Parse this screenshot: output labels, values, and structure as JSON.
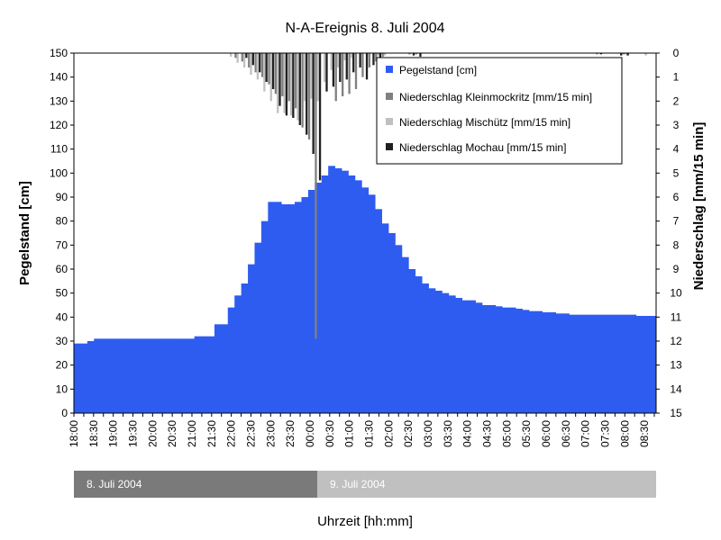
{
  "chart_data": {
    "type": "bar",
    "title": "N-A-Ereignis 8. Juli 2004",
    "xlabel": "Uhrzeit [hh:mm]",
    "ylabel": "Pegelstand [cm]",
    "y2label": "Niederschlag [mm/15 min]",
    "ylim": [
      0,
      150
    ],
    "y2lim": [
      0,
      15
    ],
    "y2_inverted": true,
    "yticks": [
      0,
      10,
      20,
      30,
      40,
      50,
      60,
      70,
      80,
      90,
      100,
      110,
      120,
      130,
      140,
      150
    ],
    "y2ticks": [
      0,
      1,
      2,
      3,
      4,
      5,
      6,
      7,
      8,
      9,
      10,
      11,
      12,
      13,
      14,
      15
    ],
    "time_labels": [
      "18:00",
      "18:30",
      "19:00",
      "19:30",
      "20:00",
      "20:30",
      "21:00",
      "21:30",
      "22:00",
      "22:30",
      "23:00",
      "23:30",
      "00:00",
      "00:30",
      "01:00",
      "01:30",
      "02:00",
      "02:30",
      "03:00",
      "03:30",
      "04:00",
      "04:30",
      "05:00",
      "05:30",
      "06:00",
      "06:30",
      "07:00",
      "07:30",
      "08:00",
      "08:30"
    ],
    "legend": {
      "position": "top-right",
      "entries": [
        "Pegelstand [cm]",
        "Niederschlag Kleinmockritz [mm/15 min]",
        "Niederschlag Mischütz [mm/15 min]",
        "Niederschlag Mochau [mm/15 min]"
      ]
    },
    "date_bands": [
      {
        "label": "8. Juli 2004",
        "color": "#7a7a7a"
      },
      {
        "label": "9. Juli 2004",
        "color": "#c0c0c0"
      }
    ],
    "series": [
      {
        "name": "Pegelstand [cm]",
        "color": "#2f5cf0",
        "values": [
          29,
          29,
          30,
          31,
          31,
          31,
          31,
          31,
          31,
          31,
          31,
          31,
          31,
          31,
          31,
          31,
          31,
          31,
          32,
          32,
          32,
          37,
          37,
          44,
          49,
          54,
          62,
          71,
          80,
          88,
          88,
          87,
          87,
          88,
          90,
          93,
          96,
          99,
          103,
          102,
          101,
          99,
          97,
          94,
          91,
          85,
          79,
          75,
          70,
          65,
          60,
          57,
          54,
          52,
          51,
          50,
          49,
          48,
          47,
          47,
          46,
          45,
          45,
          44.5,
          44,
          44,
          43.5,
          43,
          42.5,
          42.5,
          42,
          42,
          41.5,
          41.5,
          41,
          41,
          41,
          41,
          41,
          41,
          41,
          41,
          41,
          41,
          40.5,
          40.5,
          40.5
        ]
      },
      {
        "name": "Niederschlag Kleinmockritz [mm/15 min]",
        "color": "#808080",
        "values": [
          0,
          0,
          0,
          0,
          0,
          0,
          0,
          0,
          0,
          0,
          0,
          0,
          0,
          0,
          0,
          0,
          0,
          0,
          0,
          0,
          0,
          0,
          0,
          0,
          0.2,
          0.35,
          0.6,
          0.8,
          1.0,
          1.3,
          1.7,
          1.8,
          2.0,
          2.3,
          3.1,
          3.6,
          11.9,
          0,
          0,
          2.0,
          1.8,
          1.7,
          1.5,
          1.0,
          0.6,
          0.35,
          0.15,
          0,
          0,
          0,
          0.05,
          0.05,
          0,
          0,
          0,
          0,
          0,
          0,
          0,
          0,
          0,
          0,
          0,
          0,
          0,
          0,
          0,
          0,
          0,
          0,
          0,
          0,
          0,
          0,
          0,
          0,
          0,
          0,
          0.05,
          0,
          0,
          0,
          0.05,
          0,
          0,
          0,
          0
        ]
      },
      {
        "name": "Niederschlag Mischütz [mm/15 min]",
        "color": "#c0c0c0",
        "values": [
          0,
          0,
          0,
          0,
          0,
          0,
          0,
          0,
          0,
          0,
          0,
          0,
          0,
          0,
          0,
          0,
          0,
          0,
          0,
          0,
          0,
          0,
          0,
          0.15,
          0.4,
          0.6,
          0.9,
          1.1,
          1.6,
          2.0,
          2.5,
          2.5,
          2.6,
          2.8,
          2.0,
          1.9,
          2.0,
          1.2,
          0.7,
          0.6,
          0.3,
          0.2,
          0,
          0,
          0,
          0.1,
          0.1,
          0,
          0,
          0,
          0,
          0,
          0,
          0,
          0,
          0,
          0,
          0,
          0,
          0,
          0,
          0,
          0,
          0,
          0,
          0,
          0,
          0,
          0,
          0,
          0,
          0,
          0,
          0,
          0,
          0,
          0,
          0,
          0,
          0,
          0,
          0,
          0.05,
          0,
          0,
          0.1,
          0
        ]
      },
      {
        "name": "Niederschlag Mochau [mm/15 min]",
        "color": "#202020",
        "values": [
          0,
          0,
          0,
          0,
          0,
          0,
          0,
          0,
          0,
          0,
          0,
          0,
          0,
          0,
          0,
          0,
          0,
          0,
          0,
          0,
          0,
          0,
          0,
          0,
          0,
          0.2,
          0.5,
          0.8,
          1.2,
          1.5,
          2.2,
          2.6,
          2.7,
          3.0,
          3.4,
          4.2,
          5.3,
          1.6,
          1.4,
          1.2,
          1.1,
          0.8,
          0.6,
          1.1,
          0.5,
          0.3,
          0,
          0,
          0,
          0,
          0.1,
          0.15,
          0,
          0,
          0,
          0,
          0,
          0,
          0,
          0,
          0,
          0,
          0,
          0,
          0,
          0,
          0,
          0,
          0,
          0,
          0,
          0,
          0,
          0,
          0,
          0,
          0,
          0,
          0.05,
          0,
          0,
          0.1,
          0.1,
          0,
          0,
          0,
          0
        ]
      }
    ]
  }
}
